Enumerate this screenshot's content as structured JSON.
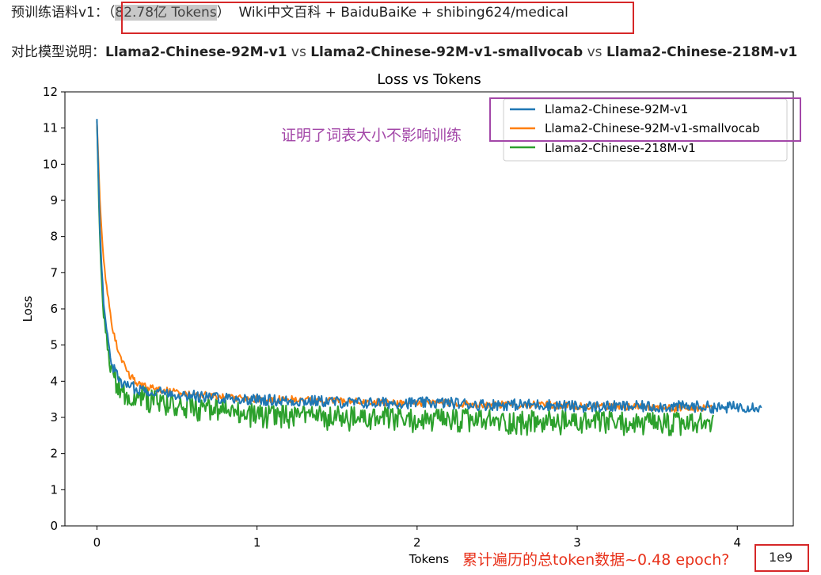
{
  "header": {
    "prefix": "预训练语料v1：",
    "paren_open": "（",
    "highlight": "82.78亿 Tokens",
    "paren_close": "）",
    "corpus": "  Wiki中文百科 + BaiduBaiKe + shibing624/medical",
    "compare_label": "对比模型说明：",
    "model_a": "Llama2-Chinese-92M-v1",
    "vs1": " vs ",
    "model_b": "Llama2-Chinese-92M-v1-smallvocab",
    "vs2": " vs ",
    "model_c": "Llama2-Chinese-218M-v1"
  },
  "annotations": {
    "vocab_note": "证明了词表大小不影响训练",
    "epoch_note": "累计遍历的总token数据~0.48 epoch?",
    "scale": "1e9"
  },
  "colors": {
    "series_a": "#1f77b4",
    "series_b": "#ff7f0e",
    "series_c": "#2ca02c",
    "annotation_purple": "#a347a8",
    "annotation_red": "#e8311a"
  },
  "chart_data": {
    "type": "line",
    "title": "Loss vs Tokens",
    "xlabel": "Tokens",
    "ylabel": "Loss",
    "xlim": [
      -0.2,
      4.35
    ],
    "ylim": [
      0,
      12
    ],
    "x_ticks": [
      0,
      1,
      2,
      3,
      4
    ],
    "y_ticks": [
      0,
      1,
      2,
      3,
      4,
      5,
      6,
      7,
      8,
      9,
      10,
      11,
      12
    ],
    "x_scale_label": "1e9",
    "legend_position": "upper right",
    "series": [
      {
        "name": "Llama2-Chinese-92M-v1",
        "color": "#1f77b4",
        "x": [
          0,
          0.02,
          0.04,
          0.06,
          0.08,
          0.1,
          0.13,
          0.16,
          0.2,
          0.25,
          0.3,
          0.4,
          0.5,
          0.6,
          0.7,
          0.8,
          0.9,
          1.0,
          1.2,
          1.4,
          1.6,
          1.8,
          2.0,
          2.2,
          2.4,
          2.6,
          2.8,
          3.0,
          3.2,
          3.4,
          3.6,
          3.8,
          3.9,
          4.0,
          4.1,
          4.15
        ],
        "y": [
          11.2,
          8.0,
          6.3,
          5.4,
          4.8,
          4.4,
          4.1,
          3.95,
          3.85,
          3.8,
          3.75,
          3.7,
          3.65,
          3.6,
          3.55,
          3.55,
          3.5,
          3.5,
          3.45,
          3.45,
          3.4,
          3.4,
          3.4,
          3.4,
          3.35,
          3.35,
          3.35,
          3.3,
          3.3,
          3.3,
          3.3,
          3.3,
          3.25,
          3.3,
          3.3,
          3.3
        ]
      },
      {
        "name": "Llama2-Chinese-92M-v1-smallvocab",
        "color": "#ff7f0e",
        "x": [
          0,
          0.02,
          0.04,
          0.06,
          0.08,
          0.1,
          0.13,
          0.16,
          0.2,
          0.25,
          0.3,
          0.4,
          0.5,
          0.6,
          0.7,
          0.8,
          0.9,
          1.0,
          1.2,
          1.4,
          1.6,
          1.8,
          2.0,
          2.2,
          2.4,
          2.6,
          2.8,
          3.0,
          3.2,
          3.4,
          3.6,
          3.8,
          3.85
        ],
        "y": [
          11.2,
          8.8,
          7.4,
          6.6,
          6.0,
          5.4,
          4.9,
          4.5,
          4.2,
          3.95,
          3.85,
          3.75,
          3.7,
          3.65,
          3.6,
          3.55,
          3.55,
          3.5,
          3.5,
          3.45,
          3.45,
          3.4,
          3.4,
          3.4,
          3.35,
          3.35,
          3.35,
          3.3,
          3.3,
          3.3,
          3.25,
          3.25,
          3.25
        ]
      },
      {
        "name": "Llama2-Chinese-218M-v1",
        "color": "#2ca02c",
        "x": [
          0,
          0.02,
          0.04,
          0.06,
          0.08,
          0.1,
          0.13,
          0.16,
          0.2,
          0.25,
          0.3,
          0.4,
          0.5,
          0.6,
          0.7,
          0.8,
          0.9,
          1.0,
          1.2,
          1.4,
          1.6,
          1.8,
          2.0,
          2.2,
          2.4,
          2.6,
          2.8,
          3.0,
          3.2,
          3.4,
          3.6,
          3.8,
          3.85
        ],
        "y": [
          11.2,
          7.6,
          6.0,
          5.2,
          4.6,
          4.2,
          3.9,
          3.7,
          3.6,
          3.55,
          3.5,
          3.4,
          3.3,
          3.25,
          3.2,
          3.15,
          3.1,
          3.05,
          3.0,
          3.0,
          2.95,
          2.95,
          2.9,
          2.9,
          2.9,
          2.85,
          2.85,
          2.85,
          2.85,
          2.8,
          2.8,
          2.8,
          2.85
        ]
      }
    ]
  }
}
